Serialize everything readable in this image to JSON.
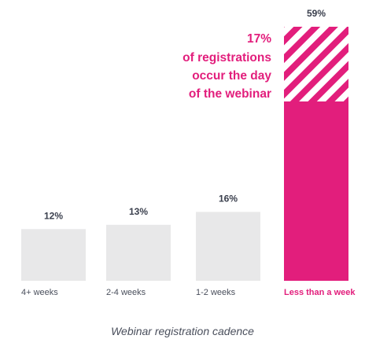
{
  "chart_data": {
    "type": "bar",
    "categories": [
      "4+ weeks",
      "2-4 weeks",
      "1-2 weeks",
      "Less than a week"
    ],
    "values": [
      12,
      13,
      16,
      59
    ],
    "value_labels": [
      "12%",
      "13%",
      "16%",
      "59%"
    ],
    "highlight_index": 3,
    "sub_segment": {
      "category": "Less than a week",
      "value": 17,
      "pattern": "diagonal-stripes"
    },
    "annotation": [
      "17%",
      "of registrations",
      "occur the day",
      "of the webinar"
    ],
    "caption": "Webinar registration cadence",
    "ylim": [
      0,
      59
    ],
    "grid": false,
    "colors": {
      "bar": "#e8e8e9",
      "highlight": "#e21e7c",
      "text": "#3a3f4d"
    }
  }
}
